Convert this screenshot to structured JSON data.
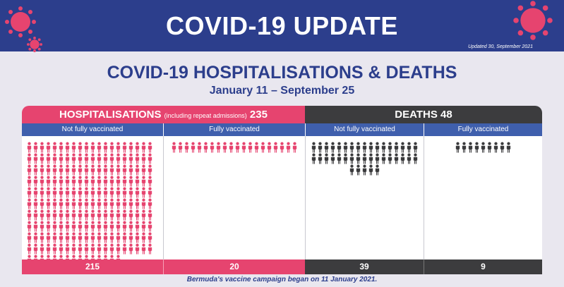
{
  "banner": {
    "title": "COVID-19 UPDATE",
    "updated": "Updated 30, September 2021"
  },
  "title": "COVID-19 HOSPITALISATIONS & DEATHS",
  "subtitle": "January 11 – September 25",
  "hospitalisations": {
    "label": "HOSPITALISATIONS",
    "note": "(including repeat admissions)",
    "total": "235",
    "not_fully_label": "Not fully vaccinated",
    "fully_label": "Fully vaccinated",
    "not_fully_count": "215",
    "fully_count": "20"
  },
  "deaths": {
    "label": "DEATHS",
    "total": "48",
    "not_fully_label": "Not fully vaccinated",
    "fully_label": "Fully vaccinated",
    "not_fully_count": "39",
    "fully_count": "9"
  },
  "footnote": "Bermuda's vaccine campaign began on 11 January 2021.",
  "colors": {
    "banner": "#2c3e8c",
    "hospital": "#e6446f",
    "death": "#3c3c3e",
    "subhead": "#3f5fad"
  },
  "icons": {
    "virus": "coronavirus-icon",
    "person": "person-icon"
  }
}
